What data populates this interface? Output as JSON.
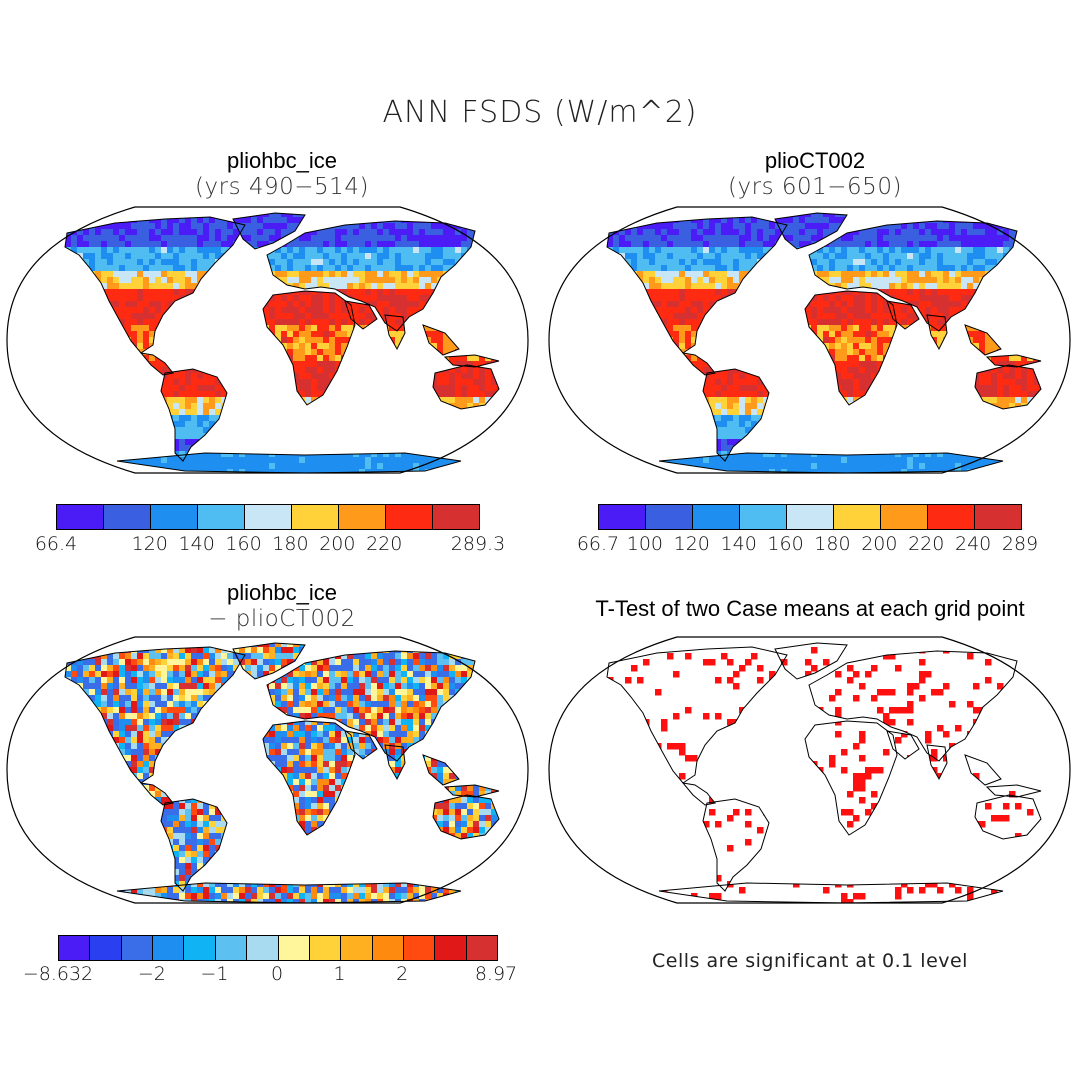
{
  "title": "ANN FSDS (W/m^2)",
  "panels": {
    "top_left": {
      "name": "pliohbc_ice",
      "subtitle": "(yrs 490−514)"
    },
    "top_right": {
      "name": "plioCT002",
      "subtitle": "(yrs 601−650)"
    },
    "bottom_left": {
      "name": "pliohbc_ice",
      "subtitle": "− plioCT002"
    },
    "bottom_right": {
      "name": "T-Test of two Case means at each grid point",
      "note": "Cells are significant at 0.1 level"
    }
  },
  "colorbars": {
    "top_left": {
      "colors": [
        "#4b1cf5",
        "#3a5fe0",
        "#1e8ff0",
        "#4fbdf2",
        "#c8e6f5",
        "#ffd23a",
        "#ff9a1a",
        "#ff2a12",
        "#d63030"
      ],
      "labels": [
        {
          "text": "66.4",
          "at": 0
        },
        {
          "text": "120",
          "at": 2
        },
        {
          "text": "140",
          "at": 3
        },
        {
          "text": "160",
          "at": 4
        },
        {
          "text": "180",
          "at": 5
        },
        {
          "text": "200",
          "at": 6
        },
        {
          "text": "220",
          "at": 7
        },
        {
          "text": "289.3",
          "at": 9
        }
      ]
    },
    "top_right": {
      "colors": [
        "#4b1cf5",
        "#3a5fe0",
        "#1e8ff0",
        "#4fbdf2",
        "#c8e6f5",
        "#ffd23a",
        "#ff9a1a",
        "#ff2a12",
        "#d63030"
      ],
      "labels": [
        {
          "text": "66.7",
          "at": 0
        },
        {
          "text": "100",
          "at": 1
        },
        {
          "text": "120",
          "at": 2
        },
        {
          "text": "140",
          "at": 3
        },
        {
          "text": "160",
          "at": 4
        },
        {
          "text": "180",
          "at": 5
        },
        {
          "text": "200",
          "at": 6
        },
        {
          "text": "220",
          "at": 7
        },
        {
          "text": "240",
          "at": 8
        },
        {
          "text": "289",
          "at": 9
        }
      ]
    },
    "bottom_left": {
      "colors": [
        "#4b1cf5",
        "#2a3ff0",
        "#3a6ee8",
        "#1e8ff0",
        "#10b4f5",
        "#5cc0f0",
        "#a8daf0",
        "#fff59a",
        "#ffd23a",
        "#ffb020",
        "#ff8a10",
        "#ff4a10",
        "#e01818",
        "#d63030"
      ],
      "labels": [
        {
          "text": "−8.632",
          "at": 0
        },
        {
          "text": "−2",
          "at": 3
        },
        {
          "text": "−1",
          "at": 5
        },
        {
          "text": "0",
          "at": 7
        },
        {
          "text": "1",
          "at": 9
        },
        {
          "text": "2",
          "at": 11
        },
        {
          "text": "8.97",
          "at": 14
        }
      ]
    }
  },
  "palette": {
    "ocean": "#ffffff",
    "coast": "#000000",
    "sig": "#ff1010"
  }
}
